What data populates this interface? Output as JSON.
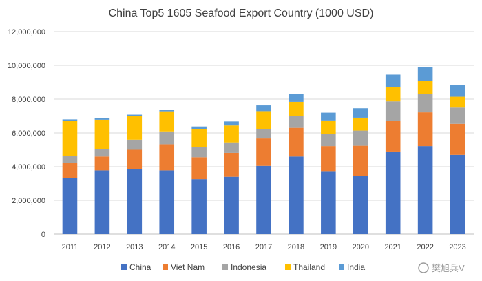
{
  "chart_data": {
    "type": "bar",
    "stacked": true,
    "title": "China Top5 1605 Seafood Export Country (1000 USD)",
    "xlabel": "",
    "ylabel": "",
    "ylim": [
      0,
      12000000
    ],
    "yticks": [
      0,
      2000000,
      4000000,
      6000000,
      8000000,
      10000000,
      12000000
    ],
    "ytick_labels": [
      "0",
      "2,000,000",
      "4,000,000",
      "6,000,000",
      "8,000,000",
      "10,000,000",
      "12,000,000"
    ],
    "grid": true,
    "legend_position": "bottom",
    "categories": [
      "2011",
      "2012",
      "2013",
      "2014",
      "2015",
      "2016",
      "2017",
      "2018",
      "2019",
      "2020",
      "2021",
      "2022",
      "2023"
    ],
    "series": [
      {
        "name": "China",
        "color": "#4472C4",
        "values": [
          3320000,
          3780000,
          3850000,
          3780000,
          3260000,
          3400000,
          4050000,
          4600000,
          3700000,
          3460000,
          4900000,
          5220000,
          4700000
        ]
      },
      {
        "name": "Viet Nam",
        "color": "#ED7D31",
        "values": [
          900000,
          820000,
          1150000,
          1550000,
          1300000,
          1420000,
          1620000,
          1700000,
          1520000,
          1780000,
          1820000,
          2000000,
          1840000
        ]
      },
      {
        "name": "Indonesia",
        "color": "#A5A5A5",
        "values": [
          420000,
          460000,
          600000,
          760000,
          600000,
          620000,
          560000,
          680000,
          730000,
          900000,
          1150000,
          1100000,
          960000
        ]
      },
      {
        "name": "Thailand",
        "color": "#FFC000",
        "values": [
          2080000,
          1720000,
          1400000,
          1190000,
          1060000,
          1000000,
          1060000,
          860000,
          790000,
          760000,
          860000,
          780000,
          640000
        ]
      },
      {
        "name": "India",
        "color": "#5B9BD5",
        "values": [
          80000,
          80000,
          80000,
          100000,
          160000,
          240000,
          340000,
          460000,
          460000,
          560000,
          720000,
          800000,
          680000
        ]
      }
    ]
  },
  "watermark": "樊旭兵V"
}
